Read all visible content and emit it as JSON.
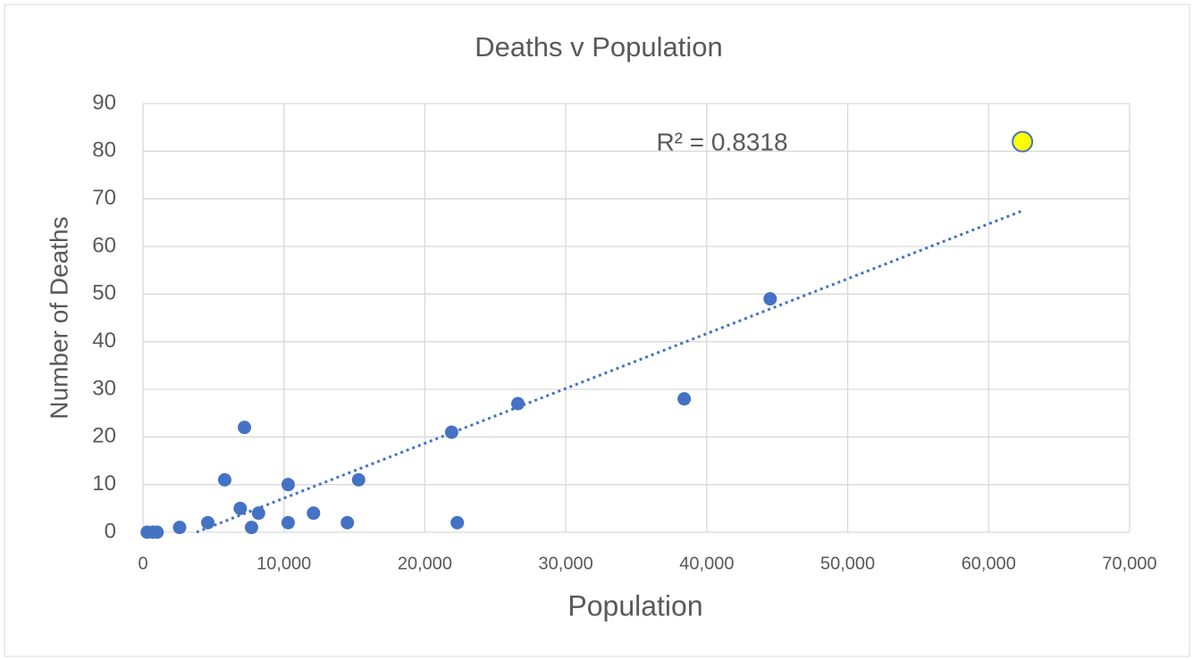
{
  "chart_data": {
    "type": "scatter",
    "title": "Deaths v Population",
    "xlabel": "Population",
    "ylabel": "Number of Deaths",
    "annotation": "R² = 0.8318",
    "color": "#4472c4",
    "x": [
      300,
      700,
      1000,
      2600,
      4600,
      5800,
      6900,
      7200,
      7700,
      8200,
      10300,
      10300,
      12100,
      14500,
      15300,
      21900,
      22300,
      26600,
      38400,
      44500
    ],
    "y": [
      0,
      0,
      0,
      1,
      2,
      11,
      5,
      22,
      1,
      4,
      10,
      2,
      4,
      2,
      11,
      21,
      2,
      27,
      28,
      49
    ],
    "highlight": {
      "x": 62400,
      "y": 82,
      "color": "#ffff00"
    },
    "trendline": {
      "x": [
        3800,
        62400
      ],
      "y": [
        0,
        67.5
      ]
    },
    "xlim": [
      0,
      70000
    ],
    "xticks": [
      0,
      {
        "value": 10000,
        "label": "10,000"
      },
      {
        "value": 20000,
        "label": "20,000"
      },
      {
        "value": 30000,
        "label": "30,000"
      },
      {
        "value": 40000,
        "label": "40,000"
      },
      {
        "value": 50000,
        "label": "50,000"
      },
      {
        "value": 60000,
        "label": "60,000"
      },
      {
        "value": 70000,
        "label": "70,000"
      }
    ],
    "ylim": [
      0,
      90
    ],
    "yticks": [
      0,
      10,
      20,
      30,
      40,
      50,
      60,
      70,
      80,
      90
    ],
    "grid": true
  }
}
